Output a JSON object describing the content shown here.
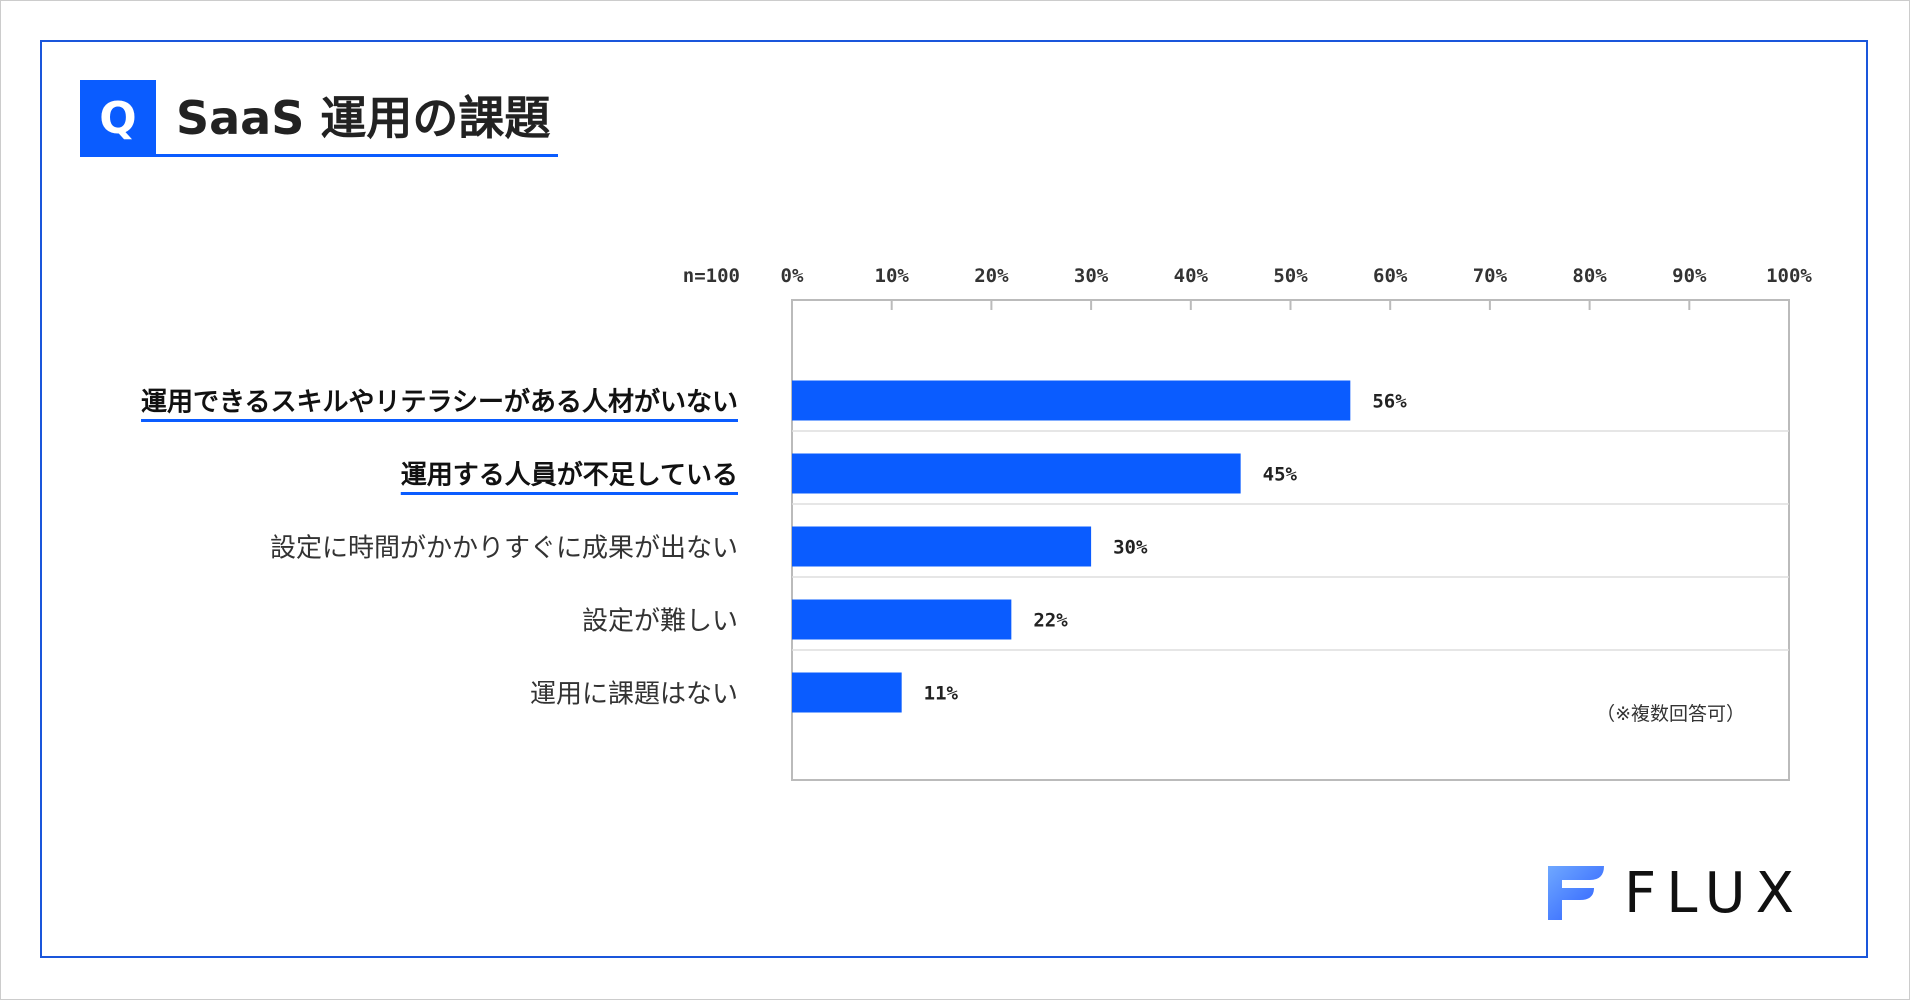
{
  "header": {
    "q_mark": "Q",
    "title": "SaaS 運用の課題"
  },
  "brand": {
    "logo_text": "FLUX",
    "logo_icon": "flux-f-icon",
    "accent": "#0a5cff"
  },
  "chart_data": {
    "type": "bar",
    "orientation": "horizontal",
    "n_label": "n=100",
    "categories": [
      "運用できるスキルやリテラシーがある人材がいない",
      "運用する人員が不足している",
      "設定に時間がかかりすぐに成果が出ない",
      "設定が難しい",
      "運用に課題はない"
    ],
    "emphasized": [
      true,
      true,
      false,
      false,
      false
    ],
    "values": [
      56,
      45,
      30,
      22,
      11
    ],
    "value_labels": [
      "56%",
      "45%",
      "30%",
      "22%",
      "11%"
    ],
    "xlim": [
      0,
      100
    ],
    "ticks": [
      "0%",
      "10%",
      "20%",
      "30%",
      "40%",
      "50%",
      "60%",
      "70%",
      "80%",
      "90%",
      "100%"
    ],
    "note": "（※複数回答可）",
    "bar_color": "#0a5cff",
    "grid": true
  }
}
